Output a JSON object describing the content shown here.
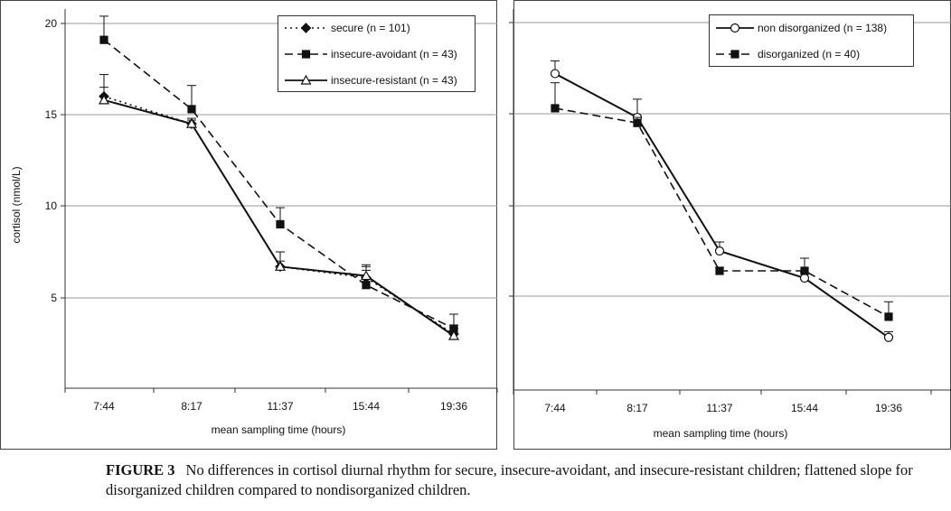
{
  "caption": {
    "label": "FIGURE 3",
    "text": "No differences in cortisol diurnal rhythm for secure, insecure-avoidant, and insecure-resistant children; flattened slope for disorganized children compared to nondisorganized children."
  },
  "chart_data": [
    {
      "type": "line",
      "title": "",
      "xlabel": "mean sampling time (hours)",
      "ylabel": "cortisol (nmol/L)",
      "categories": [
        "7:44",
        "8:17",
        "11:37",
        "15:44",
        "19:36"
      ],
      "ylim": [
        0,
        21
      ],
      "yticks": [
        5,
        10,
        15,
        20
      ],
      "grid": true,
      "legend": "top-right",
      "series": [
        {
          "name": "secure (n = 101)",
          "style": "dotted",
          "marker": "diamond-filled",
          "values": [
            16.0,
            14.5,
            6.7,
            6.1,
            3.0
          ],
          "err": [
            1.2,
            0.3,
            0.3,
            0.4,
            0.5
          ]
        },
        {
          "name": "insecure-avoidant (n = 43)",
          "style": "dashed",
          "marker": "square-filled",
          "values": [
            19.1,
            15.3,
            9.0,
            5.7,
            3.3
          ],
          "err": [
            1.3,
            1.3,
            0.9,
            1.1,
            0.8
          ]
        },
        {
          "name": "insecure-resistant (n = 43)",
          "style": "solid",
          "marker": "triangle-open",
          "values": [
            15.8,
            14.5,
            6.7,
            6.2,
            2.9
          ],
          "err": [
            0.7,
            0.2,
            0.8,
            0.5,
            0.4
          ]
        }
      ]
    },
    {
      "type": "line",
      "title": "",
      "xlabel": "mean sampling time (hours)",
      "ylabel": "",
      "categories": [
        "7:44",
        "8:17",
        "11:37",
        "15:44",
        "19:36"
      ],
      "ylim": [
        0,
        21
      ],
      "yticks": [
        5,
        10,
        15,
        20
      ],
      "grid": true,
      "legend": "top-right",
      "series": [
        {
          "name": "non disorganized (n = 138)",
          "style": "solid",
          "marker": "circle-open",
          "values": [
            17.2,
            14.8,
            7.5,
            6.0,
            2.8
          ],
          "err": [
            0.7,
            1.0,
            0.5,
            0.3,
            0.3
          ]
        },
        {
          "name": "disorganized (n = 40)",
          "style": "dashed",
          "marker": "square-filled",
          "values": [
            15.3,
            14.5,
            6.4,
            6.4,
            3.9
          ],
          "err": [
            1.4,
            0.3,
            0.2,
            0.7,
            0.8
          ]
        }
      ]
    }
  ]
}
